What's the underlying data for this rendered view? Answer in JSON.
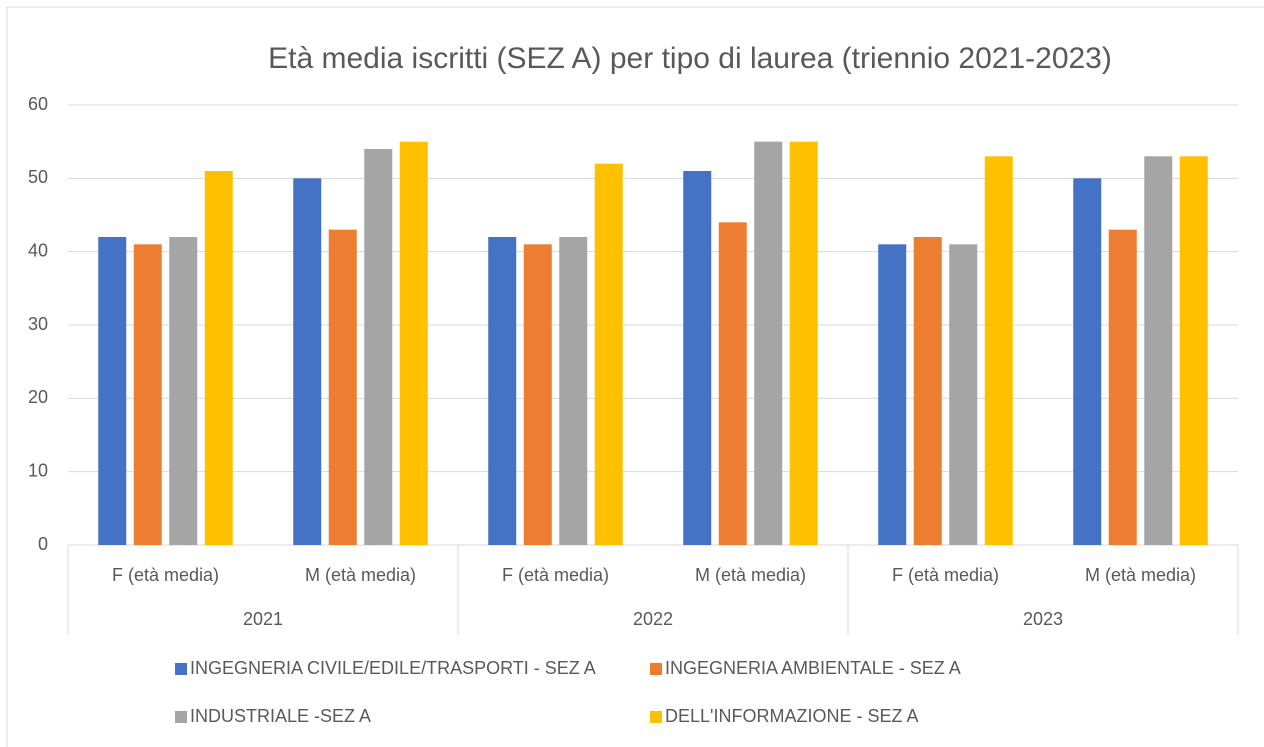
{
  "chart_data": {
    "type": "bar",
    "title": "Età media iscritti (SEZ A) per tipo di laurea (triennio 2021-2023)",
    "categories": [
      "F (età media)",
      "M (età media)",
      "F (età media)",
      "M (età media)",
      "F (età media)",
      "M (età media)"
    ],
    "groups": [
      "2021",
      "2022",
      "2023"
    ],
    "series": [
      {
        "name": "INGEGNERIA CIVILE/EDILE/TRASPORTI - SEZ A",
        "color": "#4472c4",
        "values": [
          42,
          50,
          42,
          51,
          41,
          50
        ]
      },
      {
        "name": "INGEGNERIA AMBIENTALE - SEZ A",
        "color": "#ed7d31",
        "values": [
          41,
          43,
          41,
          44,
          42,
          43
        ]
      },
      {
        "name": "INDUSTRIALE -SEZ A",
        "color": "#a5a5a5",
        "values": [
          42,
          54,
          42,
          55,
          41,
          53
        ]
      },
      {
        "name": "DELL'INFORMAZIONE - SEZ A",
        "color": "#ffc000",
        "values": [
          51,
          55,
          52,
          55,
          53,
          53
        ]
      }
    ],
    "ylim": [
      0,
      60
    ],
    "yticks": [
      0,
      10,
      20,
      30,
      40,
      50,
      60
    ],
    "grid": true,
    "legend": "bottom"
  }
}
